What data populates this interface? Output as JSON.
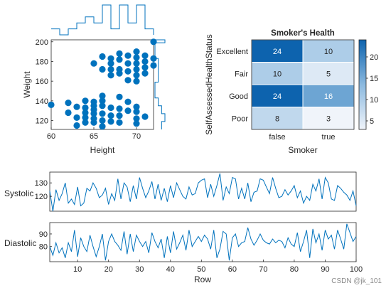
{
  "watermark": "CSDN @jk_101",
  "chart_data": [
    {
      "type": "scatter",
      "xlabel": "Height",
      "ylabel": "Weight",
      "xlim": [
        60,
        72
      ],
      "ylim": [
        111,
        202
      ],
      "xticks": [
        60,
        65,
        70
      ],
      "yticks": [
        120,
        140,
        160,
        180,
        200
      ],
      "marker_color": "#0072BD",
      "points": [
        [
          60,
          136
        ],
        [
          62,
          138
        ],
        [
          62,
          128
        ],
        [
          63,
          134
        ],
        [
          63,
          123
        ],
        [
          63,
          115
        ],
        [
          64,
          140
        ],
        [
          64,
          133
        ],
        [
          64,
          128
        ],
        [
          64,
          123
        ],
        [
          64,
          118
        ],
        [
          65,
          139
        ],
        [
          65,
          135
        ],
        [
          65,
          131
        ],
        [
          65,
          127
        ],
        [
          65,
          122
        ],
        [
          65,
          118
        ],
        [
          66,
          145
        ],
        [
          66,
          140
        ],
        [
          66,
          135
        ],
        [
          66,
          127
        ],
        [
          66,
          120
        ],
        [
          66,
          114
        ],
        [
          67,
          133
        ],
        [
          67,
          125
        ],
        [
          67,
          119
        ],
        [
          68,
          144
        ],
        [
          68,
          132
        ],
        [
          68,
          125
        ],
        [
          68,
          118
        ],
        [
          69,
          139
        ],
        [
          69,
          130
        ],
        [
          70,
          134
        ],
        [
          70,
          129
        ],
        [
          70,
          122
        ],
        [
          70,
          117
        ],
        [
          71,
          124
        ],
        [
          65,
          178
        ],
        [
          66,
          185
        ],
        [
          66,
          172
        ],
        [
          67,
          183
        ],
        [
          67,
          178
        ],
        [
          67,
          172
        ],
        [
          67,
          166
        ],
        [
          68,
          188
        ],
        [
          68,
          182
        ],
        [
          68,
          172
        ],
        [
          68,
          168
        ],
        [
          69,
          186
        ],
        [
          69,
          178
        ],
        [
          69,
          170
        ],
        [
          69,
          161
        ],
        [
          70,
          190
        ],
        [
          70,
          184
        ],
        [
          70,
          178
        ],
        [
          70,
          172
        ],
        [
          70,
          166
        ],
        [
          70,
          160
        ],
        [
          71,
          186
        ],
        [
          71,
          180
        ],
        [
          71,
          174
        ],
        [
          71,
          168
        ],
        [
          72,
          200
        ],
        [
          72,
          183
        ],
        [
          72,
          176
        ]
      ],
      "marginal_x_edges": [
        60,
        61,
        62,
        63,
        64,
        65,
        66,
        67,
        68,
        69,
        70,
        71,
        72
      ],
      "marginal_x_counts": [
        1,
        0,
        1,
        2,
        3,
        2,
        5,
        1,
        5,
        2,
        5,
        1,
        0
      ],
      "marginal_y_edges": [
        111,
        119,
        127,
        135,
        143,
        151,
        159,
        167,
        175,
        183,
        191,
        199,
        202
      ],
      "marginal_y_counts": [
        2,
        3,
        2,
        1,
        0,
        0,
        1,
        1,
        1,
        0,
        0,
        3,
        0
      ]
    },
    {
      "type": "heatmap",
      "title": "Smoker's Health",
      "xlabel": "Smoker",
      "ylabel": "SelfAssessedHealthStatus",
      "x_categories": [
        "false",
        "true"
      ],
      "y_categories": [
        "Excellent",
        "Fair",
        "Good",
        "Poor"
      ],
      "values": [
        [
          24,
          10
        ],
        [
          10,
          5
        ],
        [
          24,
          16
        ],
        [
          8,
          3
        ]
      ],
      "colorbar_ticks": [
        5,
        10,
        15,
        20
      ],
      "clim": [
        3,
        24
      ]
    },
    {
      "type": "line",
      "subtype": "stacked",
      "xlabel": "Row",
      "xlim": [
        1,
        100
      ],
      "xticks": [
        10,
        20,
        30,
        40,
        50,
        60,
        70,
        80,
        90,
        100
      ],
      "line_color": "#0072BD",
      "series": [
        {
          "name": "Systolic",
          "ylim": [
            109,
            138
          ],
          "yticks": [
            120,
            130
          ],
          "values": [
            124,
            109,
            125,
            117,
            122,
            130,
            115,
            118,
            114,
            127,
            113,
            115,
            126,
            124,
            130,
            126,
            119,
            121,
            126,
            114,
            122,
            117,
            133,
            118,
            130,
            127,
            116,
            128,
            118,
            134,
            126,
            119,
            124,
            131,
            118,
            129,
            117,
            126,
            116,
            128,
            119,
            130,
            125,
            120,
            118,
            127,
            121,
            122,
            130,
            132,
            133,
            119,
            129,
            120,
            128,
            137,
            117,
            127,
            122,
            134,
            133,
            118,
            126,
            118,
            130,
            116,
            123,
            124,
            133,
            132,
            127,
            122,
            134,
            126,
            119,
            120,
            125,
            121,
            124,
            128,
            119,
            124,
            115,
            120,
            117,
            129,
            124,
            133,
            118,
            134,
            130,
            118,
            117,
            128,
            126,
            123,
            121,
            117,
            124,
            113
          ]
        },
        {
          "name": "Diastolic",
          "ylim": [
            68,
            99
          ],
          "yticks": [
            80,
            90
          ],
          "values": [
            80,
            73,
            83,
            75,
            79,
            71,
            83,
            76,
            93,
            72,
            87,
            80,
            76,
            89,
            80,
            72,
            80,
            90,
            69,
            84,
            90,
            84,
            81,
            77,
            92,
            74,
            90,
            76,
            89,
            84,
            80,
            84,
            75,
            91,
            84,
            79,
            86,
            71,
            88,
            75,
            92,
            78,
            83,
            89,
            77,
            93,
            80,
            84,
            88,
            84,
            89,
            86,
            78,
            93,
            71,
            78,
            92,
            90,
            69,
            87,
            90,
            80,
            83,
            84,
            95,
            86,
            81,
            85,
            90,
            85,
            83,
            82,
            86,
            83,
            85,
            84,
            79,
            87,
            82,
            80,
            91,
            76,
            84,
            93,
            71,
            94,
            83,
            90,
            77,
            93,
            86,
            89,
            78,
            93,
            86,
            78,
            98,
            91,
            84,
            88
          ]
        }
      ]
    }
  ]
}
